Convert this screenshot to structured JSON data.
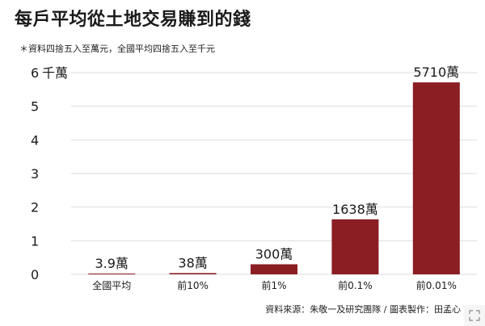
{
  "header": {
    "title": "每戶平均從土地交易賺到的錢",
    "subtitle": "＊資料四捨五入至萬元，全國平均四捨五入至千元"
  },
  "footer": {
    "source": "資料來源：朱敬一及研究團隊 / 圖表製作：田孟心"
  },
  "colors": {
    "bar": "#8b1e23",
    "grid": "#dddddd",
    "text": "#1a1a1a"
  },
  "chart_data": {
    "type": "bar",
    "categories": [
      "全國平均",
      "前10%",
      "前1%",
      "前0.1%",
      "前0.01%"
    ],
    "values": [
      3.9,
      38,
      300,
      1638,
      5710
    ],
    "data_labels": [
      "3.9萬",
      "38萬",
      "300萬",
      "1638萬",
      "5710萬"
    ],
    "y_tick_values": [
      0,
      1000,
      2000,
      3000,
      4000,
      5000,
      6000
    ],
    "y_tick_labels": [
      "0",
      "1",
      "2",
      "3",
      "4",
      "5",
      "6"
    ],
    "y_unit_label": "千萬",
    "ylim": [
      0,
      6000
    ],
    "grid": true,
    "legend": "none"
  },
  "controls": {
    "expand_icon": "expand-icon"
  }
}
